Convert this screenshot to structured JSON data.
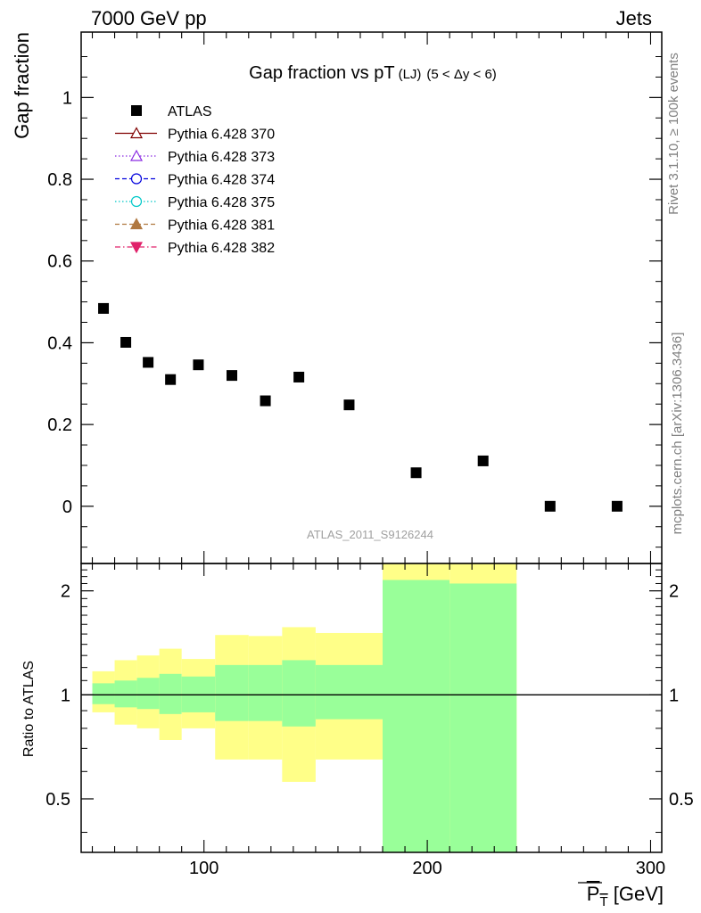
{
  "header": {
    "left": "7000 GeV pp",
    "right": "Jets"
  },
  "side_labels": {
    "rivet": "Rivet 3.1.10, ≥ 100k events",
    "mcplots": "mcplots.cern.ch [arXiv:1306.3436]"
  },
  "analysis_label": "ATLAS_2011_S9126244",
  "chart_data": [
    {
      "type": "scatter",
      "title": "Gap fraction vs pT",
      "title_sub": "(LJ)",
      "title_range": "(5 < Δy < 6)",
      "ylabel": "Gap fraction",
      "xlim": [
        45,
        305
      ],
      "ylim": [
        -0.14,
        1.16
      ],
      "yticks": [
        0,
        0.2,
        0.4,
        0.6,
        0.8,
        1
      ],
      "ytick_labels": [
        "0",
        "0.2",
        "0.4",
        "0.6",
        "0.8",
        "1"
      ],
      "legend": [
        {
          "label": "ATLAS",
          "color": "#000000",
          "marker": "square-filled",
          "line": "none"
        },
        {
          "label": "Pythia 6.428 370",
          "color": "#800000",
          "marker": "triangle-up-open",
          "line": "solid"
        },
        {
          "label": "Pythia 6.428 373",
          "color": "#8a2be2",
          "marker": "triangle-up-open",
          "line": "dotted"
        },
        {
          "label": "Pythia 6.428 374",
          "color": "#0000dd",
          "marker": "circle-open",
          "line": "dashed"
        },
        {
          "label": "Pythia 6.428 375",
          "color": "#00c8c8",
          "marker": "circle-open",
          "line": "dotted"
        },
        {
          "label": "Pythia 6.428 381",
          "color": "#b07840",
          "marker": "triangle-up-filled",
          "line": "dashed"
        },
        {
          "label": "Pythia 6.428 382",
          "color": "#e0206a",
          "marker": "triangle-down-filled",
          "line": "dashdot"
        }
      ],
      "series": [
        {
          "name": "ATLAS",
          "color": "#000000",
          "x": [
            55,
            65,
            75,
            85,
            97.5,
            112.5,
            127.5,
            142.5,
            165,
            195,
            225,
            255,
            285
          ],
          "y": [
            0.484,
            0.401,
            0.352,
            0.31,
            0.346,
            0.32,
            0.258,
            0.316,
            0.248,
            0.082,
            0.111,
            0.0,
            0.0
          ]
        }
      ]
    },
    {
      "type": "area",
      "ylabel": "Ratio to ATLAS",
      "xlabel": "P̅T [GeV]",
      "xlabel_main": "P",
      "xlabel_sub": "T",
      "xlabel_unit": " [GeV]",
      "xlim": [
        45,
        305
      ],
      "ylim": [
        0.35,
        2.4
      ],
      "yscale": "log",
      "yticks": [
        0.5,
        1,
        2
      ],
      "ytick_labels": [
        "0.5",
        "1",
        "2"
      ],
      "xticks": [
        100,
        200,
        300
      ],
      "xtick_labels": [
        "100",
        "200",
        "300"
      ],
      "reference_line": 1,
      "colors": {
        "stat": "#99ff99",
        "total": "#ffff88",
        "line": "#000000"
      },
      "bins": [
        {
          "x": [
            50,
            60
          ],
          "stat": [
            0.94,
            1.08
          ],
          "total": [
            0.89,
            1.17
          ]
        },
        {
          "x": [
            60,
            70
          ],
          "stat": [
            0.92,
            1.1
          ],
          "total": [
            0.82,
            1.26
          ]
        },
        {
          "x": [
            70,
            80
          ],
          "stat": [
            0.91,
            1.12
          ],
          "total": [
            0.8,
            1.3
          ]
        },
        {
          "x": [
            80,
            90
          ],
          "stat": [
            0.88,
            1.15
          ],
          "total": [
            0.74,
            1.36
          ]
        },
        {
          "x": [
            90,
            105
          ],
          "stat": [
            0.89,
            1.13
          ],
          "total": [
            0.8,
            1.27
          ]
        },
        {
          "x": [
            105,
            120
          ],
          "stat": [
            0.84,
            1.22
          ],
          "total": [
            0.65,
            1.49
          ]
        },
        {
          "x": [
            120,
            135
          ],
          "stat": [
            0.84,
            1.22
          ],
          "total": [
            0.65,
            1.48
          ]
        },
        {
          "x": [
            135,
            150
          ],
          "stat": [
            0.81,
            1.26
          ],
          "total": [
            0.56,
            1.57
          ]
        },
        {
          "x": [
            150,
            180
          ],
          "stat": [
            0.85,
            1.22
          ],
          "total": [
            0.65,
            1.51
          ]
        },
        {
          "x": [
            180,
            210
          ],
          "stat": [
            0.3,
            2.15
          ],
          "total": [
            0.3,
            2.5
          ]
        },
        {
          "x": [
            210,
            240
          ],
          "stat": [
            0.3,
            2.1
          ],
          "total": [
            0.3,
            2.5
          ]
        }
      ]
    }
  ]
}
